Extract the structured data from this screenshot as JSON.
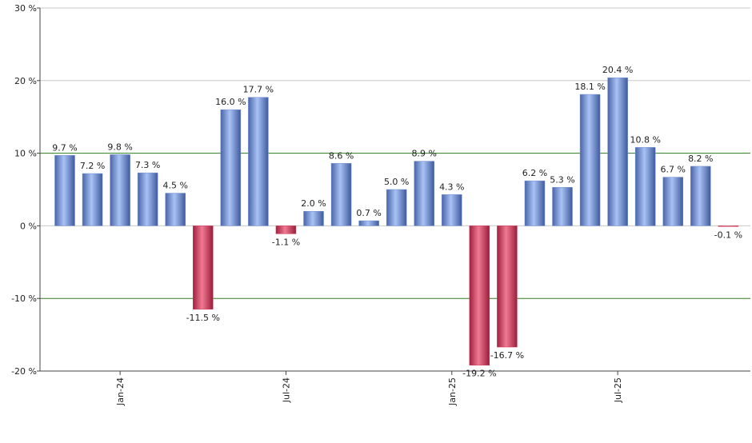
{
  "chart_data": {
    "type": "bar",
    "categories": [
      null,
      null,
      "Jan-24",
      null,
      null,
      null,
      null,
      null,
      "Jul-24",
      null,
      null,
      null,
      null,
      null,
      "Jan-25",
      null,
      null,
      null,
      null,
      null,
      "Jul-25",
      null,
      null,
      null,
      null
    ],
    "values": [
      9.7,
      7.2,
      9.8,
      7.3,
      4.5,
      -11.5,
      16.0,
      17.7,
      -1.1,
      2.0,
      8.6,
      0.7,
      5.0,
      8.9,
      4.3,
      -19.2,
      -16.7,
      6.2,
      5.3,
      18.1,
      20.4,
      10.8,
      6.7,
      8.2,
      -0.1
    ],
    "value_labels": [
      "9.7 %",
      "7.2 %",
      "9.8 %",
      "7.3 %",
      "4.5 %",
      "-11.5 %",
      "16.0 %",
      "17.7 %",
      "-1.1 %",
      "2.0 %",
      "8.6 %",
      "0.7 %",
      "5.0 %",
      "8.9 %",
      "4.3 %",
      "-19.2 %",
      "-16.7 %",
      "6.2 %",
      "5.3 %",
      "18.1 %",
      "20.4 %",
      "10.8 %",
      "6.7 %",
      "8.2 %",
      "-0.1 %"
    ],
    "positive_color": "#6f8fd6",
    "negative_color": "#d63a5a",
    "ylim": [
      -20,
      30
    ],
    "yticks": [
      {
        "value": -20,
        "label": "-20 %"
      },
      {
        "value": -10,
        "label": "-10 %"
      },
      {
        "value": 0,
        "label": "0 %"
      },
      {
        "value": 10,
        "label": "10 %"
      },
      {
        "value": 20,
        "label": "20 %"
      },
      {
        "value": 30,
        "label": "30 %"
      }
    ],
    "grid": true,
    "grid_color": "#c8c8c8",
    "reference_lines": [
      10,
      -10
    ],
    "reference_color": "#2e7d1e"
  }
}
